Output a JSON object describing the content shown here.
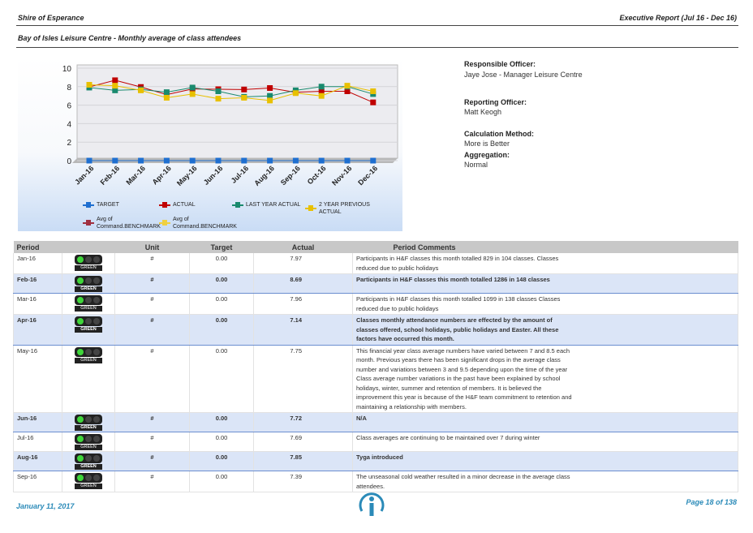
{
  "header": {
    "organisation": "Shire of Esperance",
    "report": "Executive Report (Jul 16 - Dec 16)",
    "subtitle": "Bay of Isles Leisure Centre - Monthly average of class attendees"
  },
  "chart_data": {
    "type": "line",
    "categories": [
      "Jan-16",
      "Feb-16",
      "Mar-16",
      "Apr-16",
      "May-16",
      "Jun-16",
      "Jul-16",
      "Aug-16",
      "Sep-16",
      "Oct-16",
      "Nov-16",
      "Dec-16"
    ],
    "ylim": [
      0,
      10
    ],
    "yticks": [
      0,
      2,
      4,
      6,
      8,
      10
    ],
    "series": [
      {
        "name": "TARGET",
        "color": "#1f6fd0",
        "values": [
          0,
          0,
          0,
          0,
          0,
          0,
          0,
          0,
          0,
          0,
          0,
          0
        ]
      },
      {
        "name": "ACTUAL",
        "color": "#c00000",
        "values": [
          7.97,
          8.69,
          7.96,
          7.14,
          7.75,
          7.72,
          7.69,
          7.85,
          7.39,
          7.5,
          7.5,
          6.3
        ]
      },
      {
        "name": "LAST YEAR ACTUAL",
        "color": "#1a8a6e",
        "values": [
          7.9,
          7.6,
          7.7,
          7.4,
          7.9,
          7.5,
          6.9,
          7.0,
          7.6,
          8.0,
          8.0,
          7.2
        ]
      },
      {
        "name": "2 YEAR PREVIOUS ACTUAL",
        "color": "#e8c000",
        "values": [
          8.2,
          8.1,
          7.6,
          6.8,
          7.2,
          6.7,
          6.8,
          6.5,
          7.3,
          7.0,
          8.1,
          7.5
        ]
      },
      {
        "name": "Avg of Command.BENCHMARK",
        "color": "#a03040",
        "values": [
          null,
          null,
          null,
          null,
          null,
          null,
          null,
          null,
          null,
          null,
          null,
          null
        ]
      },
      {
        "name": "Avg of Command.BENCHMARK",
        "color": "#f0d040",
        "values": [
          null,
          null,
          null,
          null,
          null,
          null,
          null,
          null,
          null,
          null,
          null,
          null
        ]
      }
    ]
  },
  "info": [
    {
      "label": "Responsible Officer:",
      "value": "Jaye Jose - Manager Leisure Centre"
    },
    {
      "label": "Reporting Officer:",
      "value": "Matt Keogh"
    },
    {
      "label": "Calculation Method:",
      "value": "More is Better"
    },
    {
      "label": "Aggregation:",
      "value": "Normal"
    }
  ],
  "table": {
    "columns": [
      "Period",
      "Unit",
      "Target",
      "Actual",
      "Period Comments"
    ],
    "rows": [
      {
        "period": "Jan-16",
        "status": "GREEN",
        "unit": "#",
        "target": "0.00",
        "actual": "7.97",
        "comments": "Participants in H&F classes this month totalled 829 in 104 classes. Classes reduced due to public holidays"
      },
      {
        "period": "Feb-16",
        "status": "GREEN",
        "unit": "#",
        "target": "0.00",
        "actual": "8.69",
        "comments": "Participants in H&F classes this month totalled 1286 in 148 classes"
      },
      {
        "period": "Mar-16",
        "status": "GREEN",
        "unit": "#",
        "target": "0.00",
        "actual": "7.96",
        "comments": "Participants in H&F classes this month totalled 1099 in 138 classes Classes reduced due to public holidays"
      },
      {
        "period": "Apr-16",
        "status": "GREEN",
        "unit": "#",
        "target": "0.00",
        "actual": "7.14",
        "comments": "Classes monthly attendance numbers are effected by the amount of classes offered, school holidays, public holidays and Easter. All these factors have occurred this month."
      },
      {
        "period": "May-16",
        "status": "GREEN",
        "unit": "#",
        "target": "0.00",
        "actual": "7.75",
        "comments": "This financial year class average numbers have varied between 7 and 8.5 each month. Previous years there has been significant drops in the average class number and variations between 3 and 9.5 depending upon the time of the year\nClass average number variations in the past have been explained by school holidays, winter, summer and retention of members. It is believed the improvement this year is because of the H&F team commitment to retention and maintaining a relationship with members."
      },
      {
        "period": "Jun-16",
        "status": "GREEN",
        "unit": "#",
        "target": "0.00",
        "actual": "7.72",
        "comments": "N/A"
      },
      {
        "period": "Jul-16",
        "status": "GREEN",
        "unit": "#",
        "target": "0.00",
        "actual": "7.69",
        "comments": "Class averages are continuing to be maintained over 7 during winter"
      },
      {
        "period": "Aug-16",
        "status": "GREEN",
        "unit": "#",
        "target": "0.00",
        "actual": "7.85",
        "comments": "Tyga introduced"
      },
      {
        "period": "Sep-16",
        "status": "GREEN",
        "unit": "#",
        "target": "0.00",
        "actual": "7.39",
        "comments": "The unseasonal cold weather resulted in a minor decrease in the average class attendees."
      }
    ]
  },
  "footer": {
    "date": "January 11, 2017",
    "page": "Page 18 of 138"
  }
}
